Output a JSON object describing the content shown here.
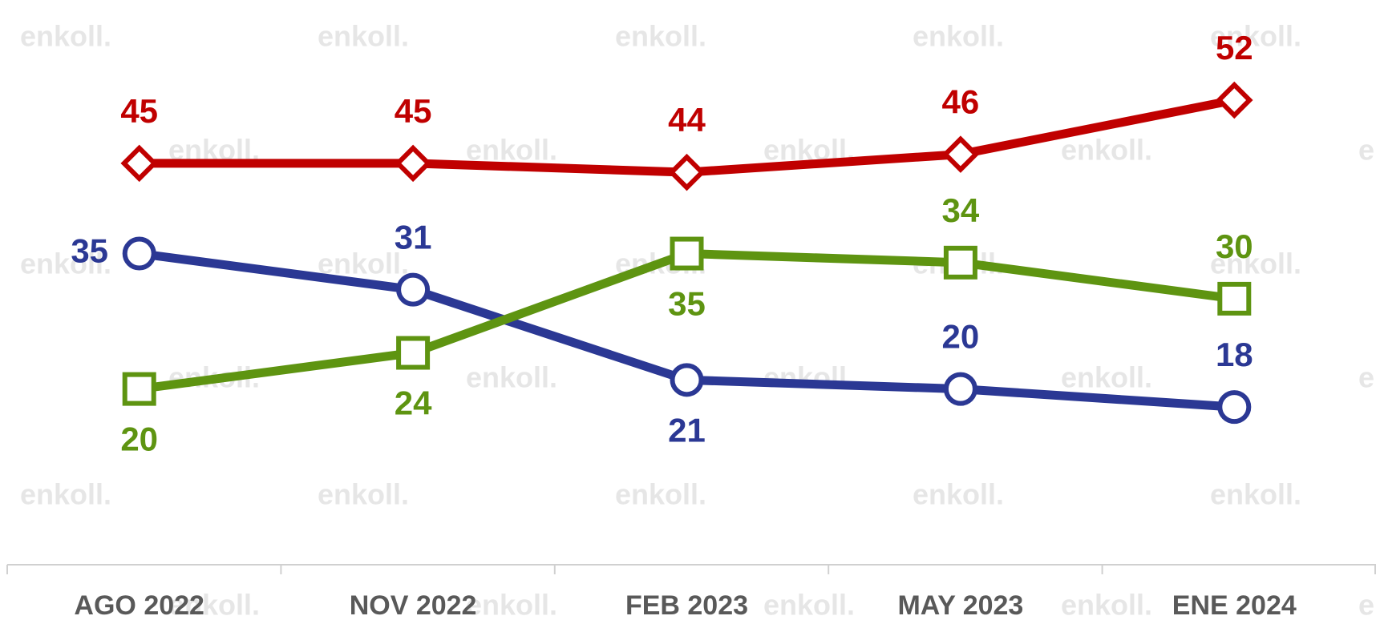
{
  "chart_data": {
    "type": "line",
    "watermark": "enkoll.",
    "categories": [
      "AGO 2022",
      "NOV 2022",
      "FEB 2023",
      "MAY 2023",
      "ENE 2024"
    ],
    "series": [
      {
        "color": "#c00000",
        "marker": "diamond",
        "values": [
          45,
          45,
          44,
          46,
          52
        ]
      },
      {
        "color": "#2b3894",
        "marker": "circle",
        "values": [
          35,
          31,
          21,
          20,
          18
        ]
      },
      {
        "color": "#5e9411",
        "marker": "square",
        "values": [
          20,
          24,
          35,
          34,
          30
        ]
      }
    ]
  }
}
